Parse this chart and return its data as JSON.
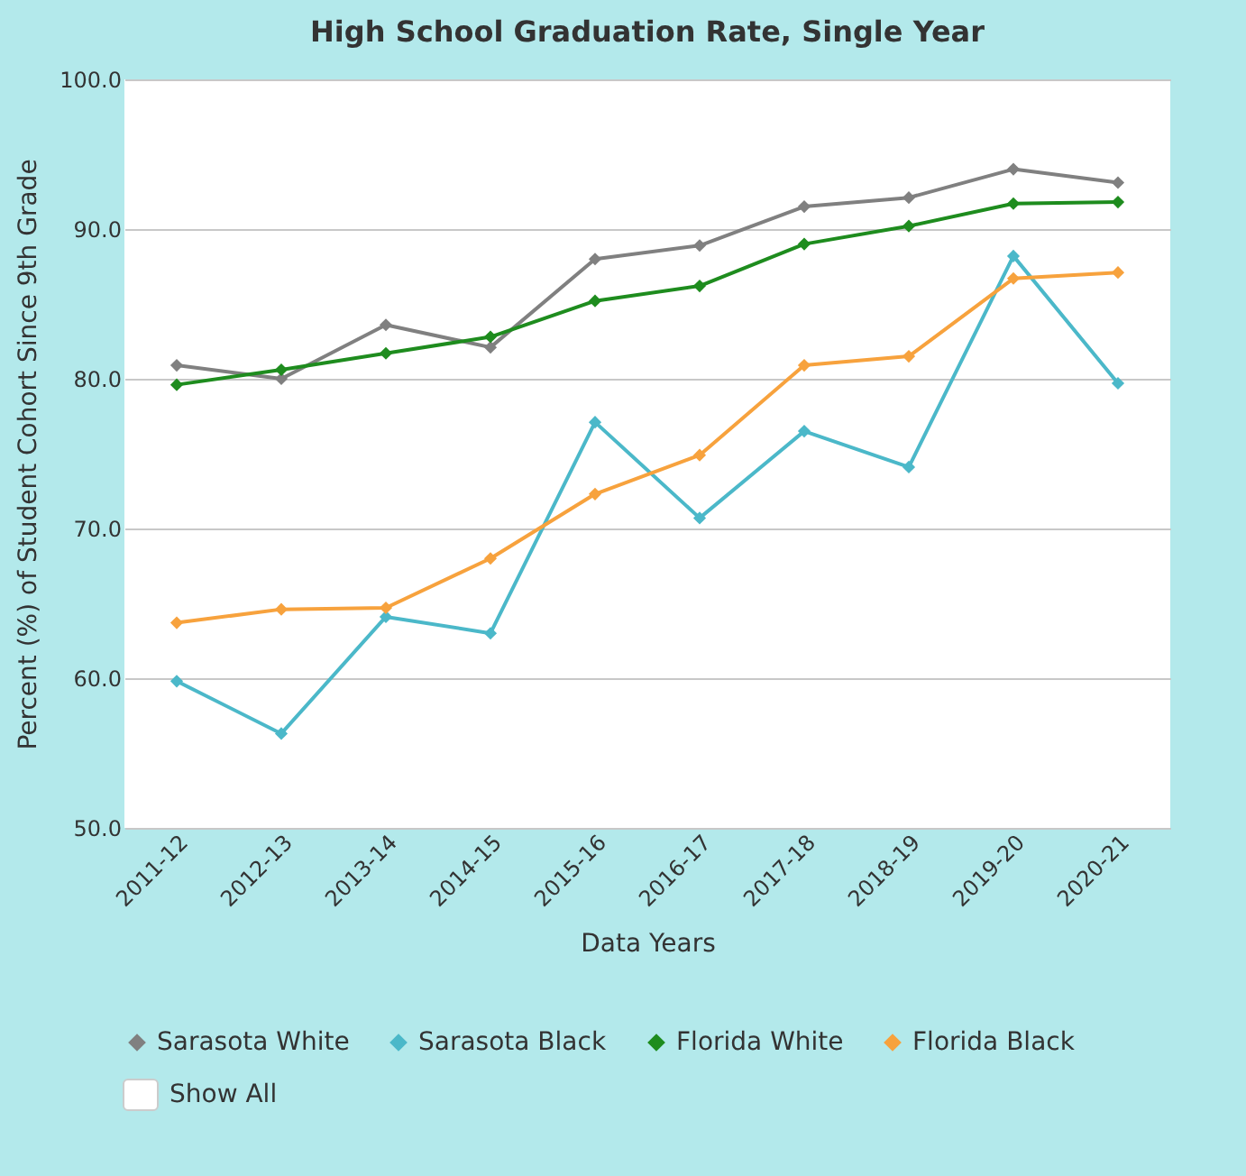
{
  "chart_data": {
    "type": "line",
    "title": "High School Graduation Rate, Single Year",
    "xlabel": "Data Years",
    "ylabel": "Percent (%) of Student Cohort Since 9th Grade",
    "categories": [
      "2011-12",
      "2012-13",
      "2013-14",
      "2014-15",
      "2015-16",
      "2016-17",
      "2017-18",
      "2018-19",
      "2019-20",
      "2020-21"
    ],
    "series": [
      {
        "name": "Sarasota White",
        "color": "#808080",
        "values": [
          80.9,
          80.0,
          83.6,
          82.1,
          88.0,
          88.9,
          91.5,
          92.1,
          94.0,
          93.1
        ]
      },
      {
        "name": "Sarasota Black",
        "color": "#4bb8c9",
        "values": [
          59.8,
          56.3,
          64.1,
          63.0,
          77.1,
          70.7,
          76.5,
          74.1,
          88.2,
          79.7
        ]
      },
      {
        "name": "Florida White",
        "color": "#1e8c1e",
        "values": [
          79.6,
          80.6,
          81.7,
          82.8,
          85.2,
          86.2,
          89.0,
          90.2,
          91.7,
          91.8
        ]
      },
      {
        "name": "Florida Black",
        "color": "#f7a23d",
        "values": [
          63.7,
          64.6,
          64.7,
          68.0,
          72.3,
          74.9,
          80.9,
          81.5,
          86.7,
          87.1
        ]
      }
    ],
    "ylim": [
      50,
      100
    ],
    "yticks": [
      {
        "value": 50,
        "label": "50.0"
      },
      {
        "value": 60,
        "label": "60.0"
      },
      {
        "value": 70,
        "label": "70.0"
      },
      {
        "value": 80,
        "label": "80.0"
      },
      {
        "value": 90,
        "label": "90.0"
      },
      {
        "value": 100,
        "label": "100.0"
      }
    ],
    "grid": "y",
    "legend": "bottom",
    "marker": "diamond",
    "line_style": "solid",
    "annotations": [
      "Show All"
    ]
  }
}
